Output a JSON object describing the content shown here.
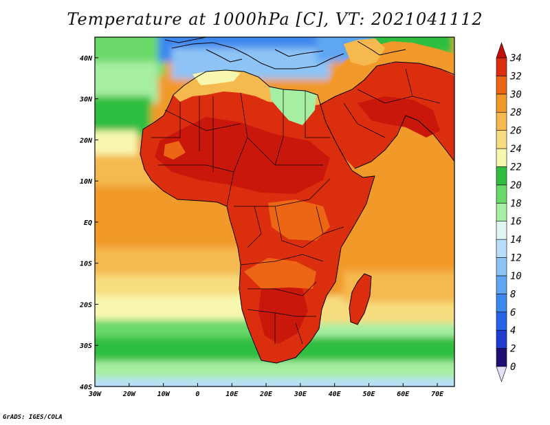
{
  "title": "Temperature at 1000hPa [C], VT: 2021041112",
  "credit": "GrADS: IGES/COLA",
  "map": {
    "lon_range": [
      -30,
      75
    ],
    "lat_range": [
      -40,
      45
    ],
    "lon_ticks": [
      {
        "value": -30,
        "label": "30W"
      },
      {
        "value": -20,
        "label": "20W"
      },
      {
        "value": -10,
        "label": "10W"
      },
      {
        "value": 0,
        "label": "0"
      },
      {
        "value": 10,
        "label": "10E"
      },
      {
        "value": 20,
        "label": "20E"
      },
      {
        "value": 30,
        "label": "30E"
      },
      {
        "value": 40,
        "label": "40E"
      },
      {
        "value": 50,
        "label": "50E"
      },
      {
        "value": 60,
        "label": "60E"
      },
      {
        "value": 70,
        "label": "70E"
      }
    ],
    "lat_ticks": [
      {
        "value": 40,
        "label": "40N"
      },
      {
        "value": 30,
        "label": "30N"
      },
      {
        "value": 20,
        "label": "20N"
      },
      {
        "value": 10,
        "label": "10N"
      },
      {
        "value": 0,
        "label": "EQ"
      },
      {
        "value": -10,
        "label": "10S"
      },
      {
        "value": -20,
        "label": "20S"
      },
      {
        "value": -30,
        "label": "30S"
      },
      {
        "value": -40,
        "label": "40S"
      }
    ]
  },
  "colorbar": {
    "levels": [
      0,
      2,
      4,
      6,
      8,
      10,
      12,
      14,
      16,
      18,
      20,
      22,
      24,
      26,
      28,
      30,
      32,
      34
    ],
    "colors": [
      "#1f0f73",
      "#1e3cd0",
      "#2565e8",
      "#3c88ee",
      "#5ea6f2",
      "#8ec4f5",
      "#b7dff9",
      "#dff6f2",
      "#a6eea1",
      "#6bd96a",
      "#2fbe40",
      "#f8f7b0",
      "#f7dd7f",
      "#f5b94f",
      "#f19a2b",
      "#ec6615",
      "#db2e0e",
      "#c9170c"
    ],
    "under_color": "#e4e0f8",
    "over_color": "#c0100a"
  }
}
